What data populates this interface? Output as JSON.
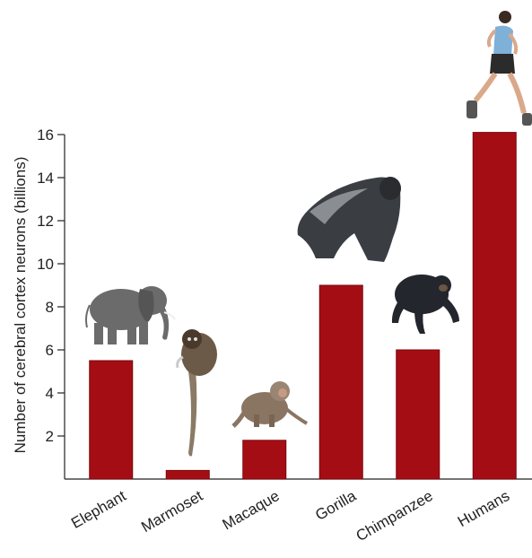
{
  "chart_data": {
    "type": "bar",
    "categories": [
      "Elephant",
      "Marmoset",
      "Macaque",
      "Gorilla",
      "Chimpanzee",
      "Humans"
    ],
    "values": [
      5.5,
      0.4,
      1.8,
      9.0,
      6.0,
      16.1
    ],
    "title": "",
    "xlabel": "",
    "ylabel": "Number of cerebral cortex neurons (billions)",
    "ylim": [
      0,
      16
    ],
    "yticks": [
      2,
      4,
      6,
      8,
      10,
      12,
      14,
      16
    ],
    "grid": false,
    "bar_color": "#a50d14",
    "bar_edge_color": "#7a070c",
    "illustrations": [
      "elephant-icon",
      "marmoset-icon",
      "macaque-icon",
      "gorilla-icon",
      "chimpanzee-icon",
      "runner-icon"
    ]
  }
}
